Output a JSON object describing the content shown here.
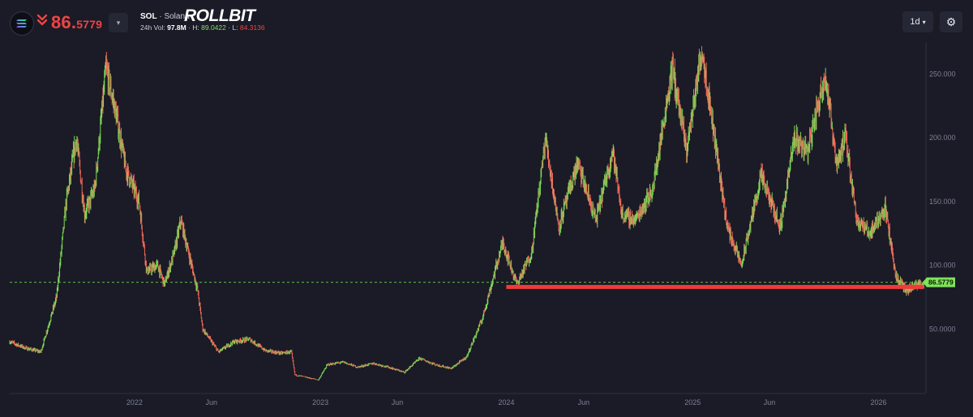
{
  "header": {
    "price_main": "86.",
    "price_decimals": "5779",
    "pair_symbol": "SOL",
    "pair_separator": " · ",
    "pair_name": "Solana",
    "brand": "ROLLBIT",
    "vol_label": "24h Vol: ",
    "vol_value": "97.8M",
    "hi_label": " · H: ",
    "hi_value": "89.0422",
    "lo_label": " · L: ",
    "lo_value": "84.3136",
    "interval": "1d",
    "icons": [
      "solana-logo-icon",
      "double-chevron-down-icon",
      "caret-down-icon",
      "gear-icon"
    ]
  },
  "chart_data": {
    "type": "candlestick",
    "ylim": [
      0,
      275
    ],
    "y_ticks": [
      50,
      100,
      150,
      200,
      250
    ],
    "y_tick_labels": [
      "50.0000",
      "100.000",
      "150.000",
      "200.000",
      "250.000"
    ],
    "x_range": [
      "2021-05-01",
      "2026-04-01"
    ],
    "x_ticks": [
      {
        "date": "2022-01-01",
        "label": "2022"
      },
      {
        "date": "2022-06-01",
        "label": "Jun"
      },
      {
        "date": "2023-01-01",
        "label": "2023"
      },
      {
        "date": "2023-06-01",
        "label": "Jun"
      },
      {
        "date": "2024-01-01",
        "label": "2024"
      },
      {
        "date": "2024-06-01",
        "label": "Jun"
      },
      {
        "date": "2025-01-01",
        "label": "2025"
      },
      {
        "date": "2025-06-01",
        "label": "Jun"
      },
      {
        "date": "2026-01-01",
        "label": "2026"
      }
    ],
    "current_price": 86.5779,
    "current_price_label": "86.5779",
    "support_line": {
      "value": 83,
      "from": "2024-01-01",
      "to": "2026-03-31",
      "color": "#ef3b3b"
    },
    "up_color": "#7ed957",
    "down_color": "#f0685a",
    "grid": false,
    "price_path": [
      [
        "2021-05-01",
        40
      ],
      [
        "2021-06-01",
        35
      ],
      [
        "2021-07-01",
        32
      ],
      [
        "2021-08-01",
        75
      ],
      [
        "2021-08-20",
        150
      ],
      [
        "2021-09-09",
        200
      ],
      [
        "2021-09-25",
        140
      ],
      [
        "2021-10-15",
        160
      ],
      [
        "2021-11-06",
        255
      ],
      [
        "2021-11-25",
        220
      ],
      [
        "2021-12-15",
        175
      ],
      [
        "2022-01-10",
        150
      ],
      [
        "2022-01-25",
        95
      ],
      [
        "2022-02-15",
        100
      ],
      [
        "2022-03-01",
        85
      ],
      [
        "2022-03-20",
        110
      ],
      [
        "2022-04-02",
        135
      ],
      [
        "2022-04-20",
        105
      ],
      [
        "2022-05-05",
        80
      ],
      [
        "2022-05-15",
        50
      ],
      [
        "2022-06-15",
        32
      ],
      [
        "2022-07-15",
        40
      ],
      [
        "2022-08-15",
        42
      ],
      [
        "2022-09-15",
        33
      ],
      [
        "2022-10-15",
        31
      ],
      [
        "2022-11-05",
        32
      ],
      [
        "2022-11-12",
        14
      ],
      [
        "2022-12-28",
        10
      ],
      [
        "2023-01-15",
        22
      ],
      [
        "2023-02-15",
        24
      ],
      [
        "2023-03-15",
        20
      ],
      [
        "2023-04-15",
        23
      ],
      [
        "2023-05-15",
        20
      ],
      [
        "2023-06-15",
        16
      ],
      [
        "2023-07-15",
        27
      ],
      [
        "2023-08-15",
        22
      ],
      [
        "2023-09-15",
        19
      ],
      [
        "2023-10-15",
        28
      ],
      [
        "2023-11-15",
        58
      ],
      [
        "2023-12-25",
        118
      ],
      [
        "2024-01-22",
        85
      ],
      [
        "2024-02-20",
        110
      ],
      [
        "2024-03-18",
        200
      ],
      [
        "2024-04-13",
        130
      ],
      [
        "2024-05-20",
        180
      ],
      [
        "2024-06-25",
        135
      ],
      [
        "2024-07-28",
        190
      ],
      [
        "2024-08-15",
        140
      ],
      [
        "2024-09-10",
        135
      ],
      [
        "2024-10-15",
        160
      ],
      [
        "2024-11-22",
        255
      ],
      [
        "2024-12-20",
        190
      ],
      [
        "2025-01-19",
        270
      ],
      [
        "2025-02-15",
        195
      ],
      [
        "2025-03-10",
        130
      ],
      [
        "2025-04-07",
        100
      ],
      [
        "2025-05-15",
        170
      ],
      [
        "2025-06-22",
        130
      ],
      [
        "2025-07-20",
        200
      ],
      [
        "2025-08-15",
        190
      ],
      [
        "2025-09-18",
        250
      ],
      [
        "2025-10-11",
        180
      ],
      [
        "2025-10-28",
        200
      ],
      [
        "2025-11-20",
        135
      ],
      [
        "2025-12-15",
        125
      ],
      [
        "2026-01-14",
        145
      ],
      [
        "2026-02-05",
        90
      ],
      [
        "2026-02-25",
        80
      ],
      [
        "2026-03-31",
        86.58
      ]
    ]
  }
}
